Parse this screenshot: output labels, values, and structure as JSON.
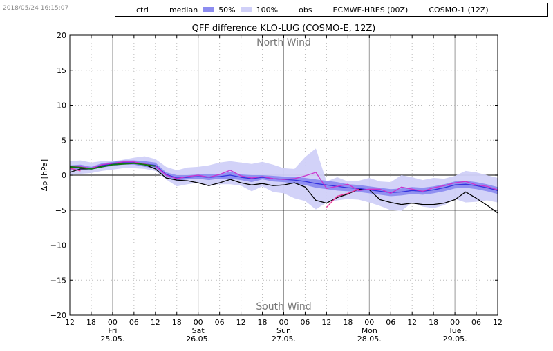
{
  "timestamp": "2018/05/24 16:15:07",
  "legend": [
    {
      "label": "ctrl",
      "kind": "line",
      "color": "#cc33cc"
    },
    {
      "label": "median",
      "kind": "line",
      "color": "#3333dd"
    },
    {
      "label": "50%",
      "kind": "box",
      "color": "#8c8cf0"
    },
    {
      "label": "100%",
      "kind": "box",
      "color": "#d0d0f8"
    },
    {
      "label": "obs",
      "kind": "line",
      "color": "#ee3399"
    },
    {
      "label": "ECMWF-HRES (00Z)",
      "kind": "line",
      "color": "#000000"
    },
    {
      "label": "COSMO-1 (12Z)",
      "kind": "line",
      "color": "#117711"
    }
  ],
  "chart_data": {
    "type": "line",
    "title": "QFF difference KLO-LUG (COSMO-E, 12Z)",
    "ylabel": "Δp [hPa]",
    "xlabel": "",
    "ylim": [
      -20,
      20
    ],
    "xlim_hours": [
      0,
      120
    ],
    "yticks": [
      "−20",
      "−15",
      "−10",
      "−5",
      "0",
      "5",
      "10",
      "15",
      "20"
    ],
    "x_tick_labels": [
      "12",
      "18",
      "00",
      "06",
      "12",
      "18",
      "00",
      "06",
      "12",
      "18",
      "00",
      "06",
      "12",
      "18",
      "00",
      "06",
      "12",
      "18",
      "00",
      "06",
      "12"
    ],
    "day_labels": [
      {
        "hour": 12,
        "name": "Fri",
        "date": "25.05."
      },
      {
        "hour": 36,
        "name": "Sat",
        "date": "26.05."
      },
      {
        "hour": 60,
        "name": "Sun",
        "date": "27.05."
      },
      {
        "hour": 84,
        "name": "Mon",
        "date": "28.05."
      },
      {
        "hour": 108,
        "name": "Tue",
        "date": "29.05."
      }
    ],
    "annotations": {
      "top": "North Wind",
      "bottom": "South Wind"
    },
    "grid": true,
    "hours": [
      0,
      3,
      6,
      9,
      12,
      15,
      18,
      21,
      24,
      27,
      30,
      33,
      36,
      39,
      42,
      45,
      48,
      51,
      54,
      57,
      60,
      63,
      66,
      69,
      72,
      75,
      78,
      81,
      84,
      87,
      90,
      93,
      96,
      99,
      102,
      105,
      108,
      111,
      114,
      117,
      120
    ],
    "series": [
      {
        "name": "100%",
        "kind": "band",
        "color": "#d0d0f8",
        "low": [
          0.0,
          0.2,
          0.3,
          0.6,
          0.8,
          1.0,
          1.0,
          0.9,
          0.6,
          -0.6,
          -1.6,
          -1.3,
          -1.1,
          -1.4,
          -1.3,
          -1.3,
          -1.5,
          -2.3,
          -1.6,
          -2.4,
          -2.6,
          -3.3,
          -3.7,
          -4.9,
          -3.9,
          -3.6,
          -3.4,
          -3.5,
          -3.9,
          -4.4,
          -5.0,
          -5.1,
          -3.9,
          -4.5,
          -4.7,
          -4.3,
          -3.4,
          -3.9,
          -3.8,
          -3.6,
          -3.9
        ],
        "high": [
          2.0,
          2.1,
          1.8,
          2.0,
          2.0,
          2.2,
          2.5,
          2.7,
          2.3,
          1.2,
          0.7,
          1.1,
          1.2,
          1.4,
          1.8,
          2.0,
          1.8,
          1.6,
          1.9,
          1.5,
          1.0,
          0.9,
          2.6,
          3.8,
          -0.9,
          -0.3,
          -0.9,
          -0.8,
          -0.4,
          -0.9,
          -1.0,
          0.0,
          -0.3,
          -0.7,
          -0.4,
          -0.5,
          -0.1,
          0.6,
          0.4,
          0.0,
          -0.4
        ]
      },
      {
        "name": "50%",
        "kind": "band",
        "color": "#8c8cf0",
        "low": [
          0.8,
          0.7,
          0.8,
          1.1,
          1.3,
          1.5,
          1.5,
          1.2,
          1.0,
          -0.2,
          -0.8,
          -0.6,
          -0.5,
          -0.7,
          -0.5,
          -0.5,
          -0.7,
          -1.0,
          -0.6,
          -0.9,
          -1.0,
          -1.2,
          -1.4,
          -1.8,
          -2.0,
          -2.2,
          -2.3,
          -2.4,
          -2.6,
          -2.8,
          -3.0,
          -2.9,
          -2.7,
          -2.8,
          -2.6,
          -2.3,
          -1.9,
          -1.8,
          -2.0,
          -2.3,
          -2.7
        ]
      },
      {
        "name": "median",
        "kind": "line",
        "color": "#3333dd",
        "values": [
          1.1,
          1.1,
          1.0,
          1.4,
          1.6,
          1.8,
          1.8,
          1.6,
          1.4,
          0.1,
          -0.4,
          -0.3,
          -0.2,
          -0.3,
          -0.2,
          0.0,
          -0.3,
          -0.5,
          -0.3,
          -0.5,
          -0.6,
          -0.7,
          -0.9,
          -1.2,
          -1.4,
          -1.6,
          -1.8,
          -1.9,
          -2.1,
          -2.3,
          -2.5,
          -2.4,
          -2.2,
          -2.3,
          -2.1,
          -1.8,
          -1.4,
          -1.3,
          -1.5,
          -1.8,
          -2.2
        ]
      },
      {
        "name": "ctrl",
        "kind": "line",
        "color": "#cc33cc",
        "values": [
          1.3,
          1.2,
          1.0,
          1.5,
          1.7,
          1.9,
          1.9,
          1.6,
          1.3,
          0.0,
          -0.5,
          -0.2,
          0.0,
          -0.3,
          0.1,
          0.7,
          -0.1,
          -0.4,
          -0.2,
          -0.5,
          -0.6,
          -0.5,
          -0.1,
          0.4,
          -1.9,
          -1.6,
          -1.3,
          -2.2,
          -2.0,
          -2.0,
          -2.6,
          -1.7,
          -2.0,
          -2.3,
          -1.8,
          -1.5,
          -1.1,
          -0.9,
          -1.4,
          -1.6,
          -2.1
        ]
      },
      {
        "name": "obs",
        "kind": "line",
        "color": "#ee3399",
        "values": [
          1.0,
          0.6,
          null,
          null,
          null,
          null,
          null,
          null,
          null,
          null,
          null,
          null,
          null,
          null,
          null,
          null,
          null,
          null,
          null,
          null,
          null,
          null,
          null,
          null,
          -4.6,
          -3.0,
          -2.6,
          -2.0,
          null,
          null,
          null,
          null,
          null,
          null,
          null,
          null,
          null,
          null,
          null,
          null,
          null
        ]
      },
      {
        "name": "ECMWF-HRES (00Z)",
        "kind": "line",
        "color": "#000000",
        "values": [
          0.4,
          0.9,
          0.9,
          1.3,
          1.6,
          1.7,
          1.7,
          1.5,
          0.9,
          -0.4,
          -0.7,
          -0.8,
          -1.1,
          -1.5,
          -1.1,
          -0.6,
          -1.1,
          -1.4,
          -1.2,
          -1.5,
          -1.4,
          -1.1,
          -1.7,
          -3.6,
          -4.0,
          -3.2,
          -2.7,
          -2.0,
          -2.1,
          -3.5,
          -3.9,
          -4.2,
          -4.0,
          -4.2,
          -4.2,
          -4.0,
          -3.5,
          -2.4,
          -3.3,
          -4.3,
          -5.4
        ]
      },
      {
        "name": "COSMO-1 (12Z)",
        "kind": "line",
        "color": "#117711",
        "values": [
          1.2,
          1.1,
          0.9,
          1.2,
          1.5,
          1.6,
          1.7,
          1.5,
          1.3,
          null,
          null,
          null,
          null,
          null,
          null,
          null,
          null,
          null,
          null,
          null,
          null,
          null,
          null,
          null,
          null,
          null,
          null,
          null,
          null,
          null,
          null,
          null,
          null,
          null,
          null,
          null,
          null,
          null,
          null,
          null,
          null
        ]
      }
    ]
  }
}
